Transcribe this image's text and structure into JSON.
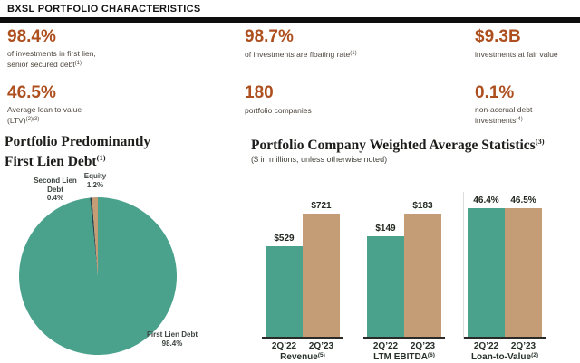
{
  "header": {
    "title": "BXSL PORTFOLIO CHARACTERISTICS"
  },
  "stats": [
    {
      "value": "98.4%",
      "caption": "of investments in first lien,\nsenior secured debt",
      "footnote": "(1)"
    },
    {
      "value": "98.7%",
      "caption": "of investments are floating rate",
      "footnote": "(1)"
    },
    {
      "value": "$9.3B",
      "caption": "investments at fair value",
      "footnote": ""
    },
    {
      "value": "46.5%",
      "caption": "Average loan to value\n(LTV)",
      "footnote": "(2)(3)"
    },
    {
      "value": "180",
      "caption": "portfolio companies",
      "footnote": ""
    },
    {
      "value": "0.1%",
      "caption": "non-accrual debt\ninvestments",
      "footnote": "(4)"
    }
  ],
  "pie_section": {
    "title_line1": "Portfolio Predominantly",
    "title_line2": "First Lien Debt",
    "title_footnote": "(1)"
  },
  "bar_section": {
    "title": "Portfolio Company Weighted Average Statistics",
    "title_footnote": "(3)",
    "subtitle": "($ in millions, unless otherwise noted)"
  },
  "chart_data": [
    {
      "type": "pie",
      "title": "Portfolio Predominantly First Lien Debt",
      "slices": [
        {
          "label": "First Lien Debt",
          "value": 98.4,
          "pct_label": "98.4%",
          "color": "#4aa28c"
        },
        {
          "label": "Second Lien Debt",
          "value": 0.4,
          "pct_label": "0.4%",
          "color": "#27454f"
        },
        {
          "label": "Equity",
          "value": 1.2,
          "pct_label": "1.2%",
          "color": "#c49d77"
        }
      ],
      "start_angle": "12 o'clock, clockwise",
      "legend_position": "labels around pie"
    },
    {
      "type": "bar",
      "title": "Portfolio Company Weighted Average Statistics",
      "subtitle": "($ in millions, unless otherwise noted)",
      "categories": [
        "2Q’22",
        "2Q’23"
      ],
      "series_colors": [
        "#4aa28c",
        "#c49d77"
      ],
      "groups": [
        {
          "label": "Revenue",
          "footnote": "(5)",
          "values": [
            529,
            721
          ],
          "value_labels": [
            "$529",
            "$721"
          ]
        },
        {
          "label": "LTM EBITDA",
          "footnote": "(6)",
          "values": [
            149,
            183
          ],
          "value_labels": [
            "$149",
            "$183"
          ]
        },
        {
          "label": "Loan-to-Value",
          "footnote": "(2)",
          "values": [
            46.4,
            46.5
          ],
          "value_labels": [
            "46.4%",
            "46.5%"
          ]
        }
      ],
      "grid": false,
      "y_axis_shown": false
    }
  ],
  "colors": {
    "accent_stat": "#ad4f1e",
    "teal": "#4aa28c",
    "tan": "#c49d77",
    "second_lien_dark": "#27454f",
    "header_rule": "#0d0d0d"
  }
}
